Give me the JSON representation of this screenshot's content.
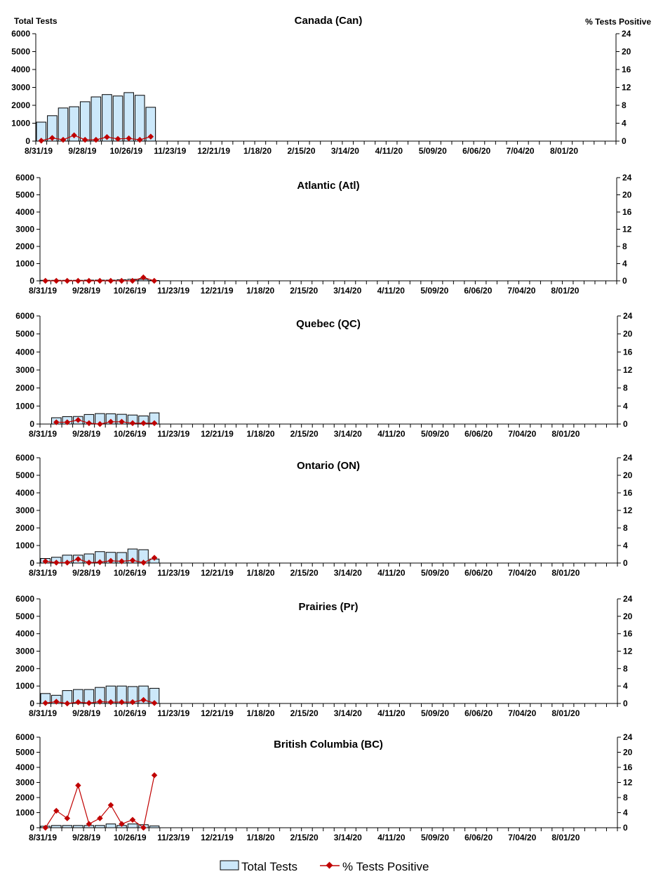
{
  "y_left_label": "Total Tests",
  "y_right_label": "% Tests Positive",
  "legend": {
    "bars": "Total Tests",
    "line": "% Tests Positive",
    "position": "bottom"
  },
  "colors": {
    "bar_fill": "#cce8fa",
    "bar_stroke": "#000000",
    "line": "#c00000"
  },
  "chart_data": [
    {
      "type": "bar+line",
      "title": "Canada (Can)",
      "ylim": [
        0,
        6000
      ],
      "y2lim": [
        0,
        24
      ],
      "yticks": [
        "0",
        "1000",
        "2000",
        "3000",
        "4000",
        "5000",
        "6000"
      ],
      "y2ticks": [
        "0",
        "4",
        "8",
        "12",
        "16",
        "20",
        "24"
      ],
      "xticks": [
        "8/31/19",
        "9/28/19",
        "10/26/19",
        "11/23/19",
        "12/21/19",
        "1/18/20",
        "2/15/20",
        "3/14/20",
        "4/11/20",
        "5/09/20",
        "6/06/20",
        "7/04/20",
        "8/01/20"
      ],
      "weeks": 53,
      "series": [
        {
          "name": "Total Tests",
          "values": [
            1060,
            1420,
            1850,
            1920,
            2200,
            2470,
            2600,
            2520,
            2710,
            2560,
            1890
          ]
        },
        {
          "name": "% Tests Positive",
          "values": [
            0.1,
            0.7,
            0.3,
            1.3,
            0.3,
            0.3,
            0.9,
            0.5,
            0.6,
            0.3,
            1.0
          ]
        }
      ]
    },
    {
      "type": "bar+line",
      "title": "Atlantic (Atl)",
      "ylim": [
        0,
        6000
      ],
      "y2lim": [
        0,
        24
      ],
      "yticks": [
        "0",
        "1000",
        "2000",
        "3000",
        "4000",
        "5000",
        "6000"
      ],
      "y2ticks": [
        "0",
        "4",
        "8",
        "12",
        "16",
        "20",
        "24"
      ],
      "xticks": [
        "8/31/19",
        "9/28/19",
        "10/26/19",
        "11/23/19",
        "12/21/19",
        "1/18/20",
        "2/15/20",
        "3/14/20",
        "4/11/20",
        "5/09/20",
        "6/06/20",
        "7/04/20",
        "8/01/20"
      ],
      "weeks": 53,
      "series": [
        {
          "name": "Total Tests",
          "values": [
            30,
            30,
            30,
            30,
            40,
            40,
            40,
            60,
            90,
            90,
            20
          ]
        },
        {
          "name": "% Tests Positive",
          "values": [
            0,
            0,
            0,
            0,
            0,
            0,
            0,
            0,
            0,
            0.8,
            0
          ]
        }
      ]
    },
    {
      "type": "bar+line",
      "title": "Quebec (QC)",
      "ylim": [
        0,
        6000
      ],
      "y2lim": [
        0,
        24
      ],
      "yticks": [
        "0",
        "1000",
        "2000",
        "3000",
        "4000",
        "5000",
        "6000"
      ],
      "y2ticks": [
        "0",
        "4",
        "8",
        "12",
        "16",
        "20",
        "24"
      ],
      "xticks": [
        "8/31/19",
        "9/28/19",
        "10/26/19",
        "11/23/19",
        "12/21/19",
        "1/18/20",
        "2/15/20",
        "3/14/20",
        "4/11/20",
        "5/09/20",
        "6/06/20",
        "7/04/20",
        "8/01/20"
      ],
      "weeks": 53,
      "series": [
        {
          "name": "Total Tests",
          "values": [
            null,
            350,
            410,
            420,
            530,
            580,
            570,
            540,
            500,
            450,
            620
          ]
        },
        {
          "name": "% Tests Positive",
          "values": [
            null,
            0.4,
            0.4,
            0.9,
            0.2,
            0,
            0.5,
            0.5,
            0.2,
            0.2,
            0.2
          ]
        }
      ]
    },
    {
      "type": "bar+line",
      "title": "Ontario (ON)",
      "ylim": [
        0,
        6000
      ],
      "y2lim": [
        0,
        24
      ],
      "yticks": [
        "0",
        "1000",
        "2000",
        "3000",
        "4000",
        "5000",
        "6000"
      ],
      "y2ticks": [
        "0",
        "4",
        "8",
        "12",
        "16",
        "20",
        "24"
      ],
      "xticks": [
        "8/31/19",
        "9/28/19",
        "10/26/19",
        "11/23/19",
        "12/21/19",
        "1/18/20",
        "2/15/20",
        "3/14/20",
        "4/11/20",
        "5/09/20",
        "6/06/20",
        "7/04/20",
        "8/01/20"
      ],
      "weeks": 53,
      "series": [
        {
          "name": "Total Tests",
          "values": [
            260,
            330,
            450,
            450,
            520,
            650,
            610,
            600,
            800,
            760,
            230
          ]
        },
        {
          "name": "% Tests Positive",
          "values": [
            0.4,
            0.1,
            0.1,
            0.9,
            0.1,
            0.2,
            0.5,
            0.4,
            0.6,
            0.1,
            1.2
          ]
        }
      ]
    },
    {
      "type": "bar+line",
      "title": "Prairies (Pr)",
      "ylim": [
        0,
        6000
      ],
      "y2lim": [
        0,
        24
      ],
      "yticks": [
        "0",
        "1000",
        "2000",
        "3000",
        "4000",
        "5000",
        "6000"
      ],
      "y2ticks": [
        "0",
        "4",
        "8",
        "12",
        "16",
        "20",
        "24"
      ],
      "xticks": [
        "8/31/19",
        "9/28/19",
        "10/26/19",
        "11/23/19",
        "12/21/19",
        "1/18/20",
        "2/15/20",
        "3/14/20",
        "4/11/20",
        "5/09/20",
        "6/06/20",
        "7/04/20",
        "8/01/20"
      ],
      "weeks": 53,
      "series": [
        {
          "name": "Total Tests",
          "values": [
            570,
            470,
            740,
            800,
            800,
            920,
            1000,
            1000,
            970,
            1000,
            870
          ]
        },
        {
          "name": "% Tests Positive",
          "values": [
            0.1,
            0.4,
            0,
            0.3,
            0.1,
            0.4,
            0.3,
            0.3,
            0.3,
            0.8,
            0.1
          ]
        }
      ]
    },
    {
      "type": "bar+line",
      "title": "British Columbia (BC)",
      "ylim": [
        0,
        6000
      ],
      "y2lim": [
        0,
        24
      ],
      "yticks": [
        "0",
        "1000",
        "2000",
        "3000",
        "4000",
        "5000",
        "6000"
      ],
      "y2ticks": [
        "0",
        "4",
        "8",
        "12",
        "16",
        "20",
        "24"
      ],
      "xticks": [
        "8/31/19",
        "9/28/19",
        "10/26/19",
        "11/23/19",
        "12/21/19",
        "1/18/20",
        "2/15/20",
        "3/14/20",
        "4/11/20",
        "5/09/20",
        "6/06/20",
        "7/04/20",
        "8/01/20"
      ],
      "weeks": 53,
      "series": [
        {
          "name": "Total Tests",
          "values": [
            100,
            150,
            150,
            150,
            150,
            150,
            250,
            150,
            250,
            200,
            120
          ]
        },
        {
          "name": "% Tests Positive",
          "values": [
            0,
            4.5,
            2.5,
            11.2,
            1,
            2.5,
            6,
            1,
            2.1,
            0,
            13.9
          ]
        }
      ]
    }
  ]
}
